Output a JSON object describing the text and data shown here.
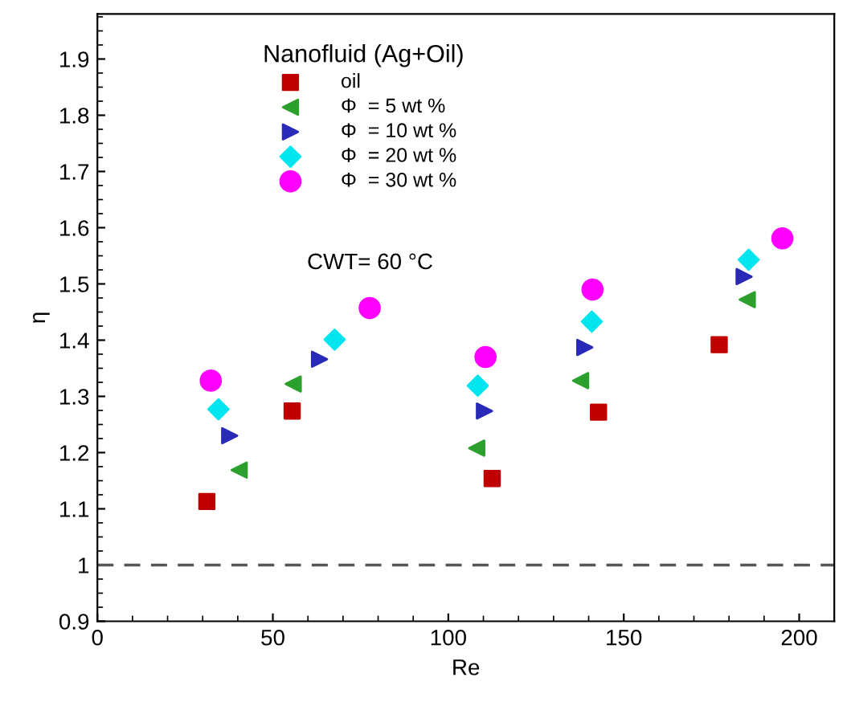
{
  "chart_data": {
    "type": "scatter",
    "xlabel": "Re",
    "ylabel": "η",
    "legend_title": "Nanofluid (Ag+Oil)",
    "annotations": [
      "CWT= 60 °C"
    ],
    "xlim": [
      0,
      210
    ],
    "ylim": [
      0.9,
      1.98
    ],
    "xticks": [
      0,
      50,
      100,
      150,
      200
    ],
    "yticks": [
      0.9,
      1,
      1.1,
      1.2,
      1.3,
      1.4,
      1.5,
      1.6,
      1.7,
      1.8,
      1.9
    ],
    "grid": false,
    "legend": "top left",
    "ref_lines": [
      {
        "axis": "y",
        "value": 1,
        "color": "#555555",
        "line_style": "dashed"
      }
    ],
    "series": [
      {
        "name": "oil",
        "color": "#c00000",
        "marker": "square",
        "x": [
          31.2,
          55.5,
          112.5,
          142.8,
          177.2
        ],
        "values": [
          1.113,
          1.274,
          1.154,
          1.272,
          1.392
        ]
      },
      {
        "name": "Φ  = 5 wt %",
        "color": "#2ca02c",
        "marker": "triangle-left",
        "x": [
          40.4,
          55.8,
          108.1,
          137.7,
          185.2
        ],
        "values": [
          1.169,
          1.322,
          1.208,
          1.328,
          1.472
        ]
      },
      {
        "name": "Φ  = 10 wt %",
        "color": "#2a2ab8",
        "marker": "triangle-right",
        "x": [
          37.7,
          63.3,
          110.3,
          138.9,
          184.3
        ],
        "values": [
          1.23,
          1.366,
          1.274,
          1.387,
          1.513
        ]
      },
      {
        "name": "Φ  = 20 wt %",
        "color": "#00e5ee",
        "marker": "diamond",
        "x": [
          34.5,
          67.6,
          108.4,
          140.9,
          185.6
        ],
        "values": [
          1.277,
          1.401,
          1.319,
          1.433,
          1.543
        ]
      },
      {
        "name": "Φ  = 30 wt %",
        "color": "#ff00ff",
        "marker": "circle",
        "x": [
          32.3,
          77.6,
          110.6,
          141.1,
          195.2
        ],
        "values": [
          1.328,
          1.457,
          1.37,
          1.49,
          1.581
        ]
      }
    ]
  }
}
